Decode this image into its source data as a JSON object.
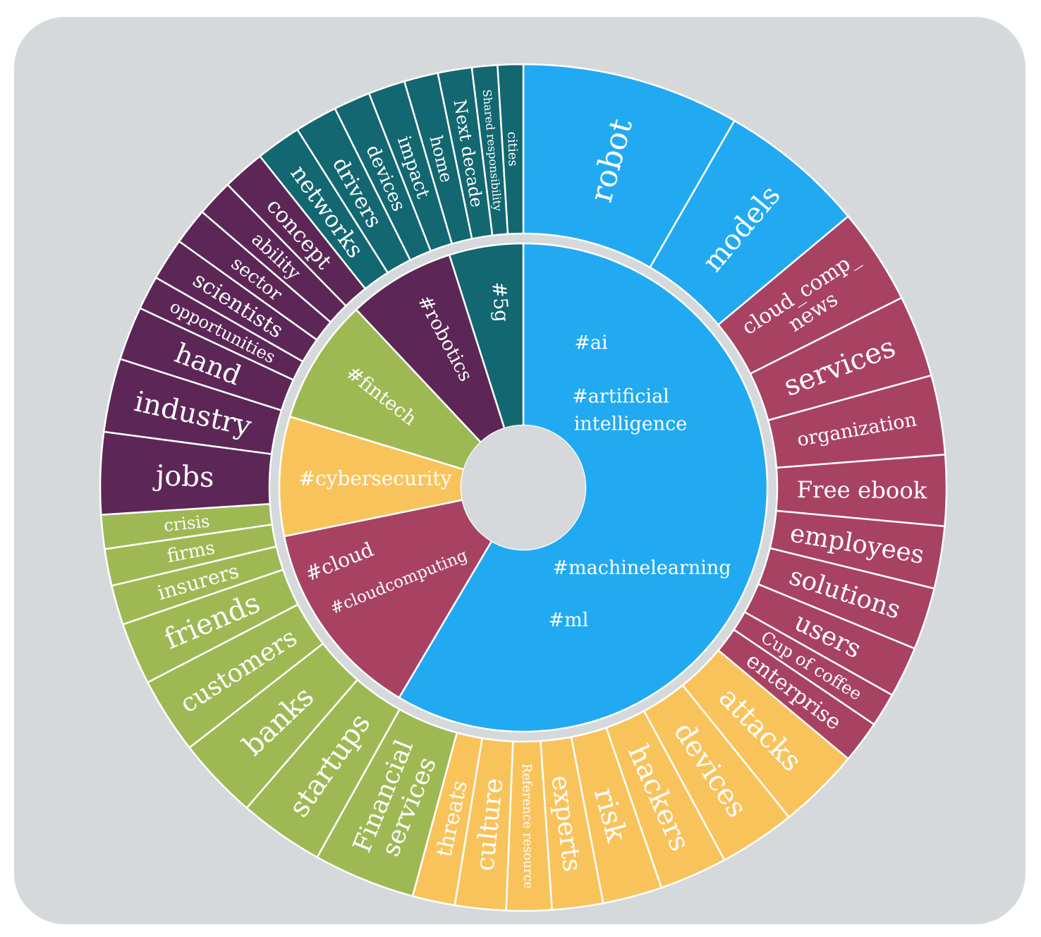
{
  "chart_data": {
    "type": "sunburst",
    "title": "",
    "colors": {
      "ai": "#21aaf2",
      "cloud": "#a84263",
      "cybersecurity": "#f9c35c",
      "fintech": "#9eb954",
      "robotics": "#5c2757",
      "5g": "#126771"
    },
    "inner": [
      {
        "key": "ai",
        "lines": [
          "#ai",
          "#artificial",
          "intelligence",
          "#machinelearning",
          "#ml"
        ],
        "value": 58.5
      },
      {
        "key": "cloud",
        "lines": [
          "#cloud",
          "#cloudcomputing"
        ],
        "value": 13.3
      },
      {
        "key": "cybersecurity",
        "lines": [
          "#cybersecurity"
        ],
        "value": 7.9
      },
      {
        "key": "fintech",
        "lines": [
          "#fintech"
        ],
        "value": 8.3
      },
      {
        "key": "robotics",
        "lines": [
          "#robotics"
        ],
        "value": 7.1
      },
      {
        "key": "5g",
        "lines": [
          "#5g"
        ],
        "value": 4.9
      }
    ],
    "outer": [
      {
        "label": "robot",
        "group": "ai",
        "value": 7.7
      },
      {
        "label": "models",
        "group": "ai",
        "value": 5.2
      },
      {
        "label": "cloud_comp_ news",
        "group": "cloud",
        "value": 3.4
      },
      {
        "label": "services",
        "group": "cloud",
        "value": 2.9
      },
      {
        "label": "organization",
        "group": "cloud",
        "value": 2.8
      },
      {
        "label": "Free ebook",
        "group": "cloud",
        "value": 2.5
      },
      {
        "label": "employees",
        "group": "cloud",
        "value": 2.2
      },
      {
        "label": "solutions",
        "group": "cloud",
        "value": 2.2
      },
      {
        "label": "users",
        "group": "cloud",
        "value": 1.8
      },
      {
        "label": "Cup of coffee",
        "group": "cloud",
        "value": 1.2
      },
      {
        "label": "enterprise",
        "group": "cloud",
        "value": 1.5
      },
      {
        "label": "attacks",
        "group": "cybersecurity",
        "value": 2.9
      },
      {
        "label": "devices",
        "group": "cybersecurity",
        "value": 2.7
      },
      {
        "label": "hackers",
        "group": "cybersecurity",
        "value": 2.4
      },
      {
        "label": "risk",
        "group": "cybersecurity",
        "value": 2.1
      },
      {
        "label": "experts",
        "group": "cybersecurity",
        "value": 1.8
      },
      {
        "label": "Reference resource",
        "group": "cybersecurity",
        "value": 1.6
      },
      {
        "label": "culture",
        "group": "cybersecurity",
        "value": 1.8
      },
      {
        "label": "threats",
        "group": "cybersecurity",
        "value": 1.5
      },
      {
        "label": "Financial services",
        "group": "fintech",
        "value": 3.6
      },
      {
        "label": "startups",
        "group": "fintech",
        "value": 3.0
      },
      {
        "label": "banks",
        "group": "fintech",
        "value": 2.9
      },
      {
        "label": "customers",
        "group": "fintech",
        "value": 2.7
      },
      {
        "label": "friends",
        "group": "fintech",
        "value": 2.2
      },
      {
        "label": "insurers",
        "group": "fintech",
        "value": 1.4
      },
      {
        "label": "firms",
        "group": "fintech",
        "value": 1.3
      },
      {
        "label": "crisis",
        "group": "fintech",
        "value": 1.2
      },
      {
        "label": "jobs",
        "group": "robotics",
        "value": 2.9
      },
      {
        "label": "industry",
        "group": "robotics",
        "value": 2.6
      },
      {
        "label": "hand",
        "group": "robotics",
        "value": 1.9
      },
      {
        "label": "opportunities",
        "group": "robotics",
        "value": 1.2
      },
      {
        "label": "scientists",
        "group": "robotics",
        "value": 1.5
      },
      {
        "label": "sector",
        "group": "robotics",
        "value": 1.3
      },
      {
        "label": "ability",
        "group": "robotics",
        "value": 1.3
      },
      {
        "label": "concept",
        "group": "robotics",
        "value": 1.5
      },
      {
        "label": "networks",
        "group": "5g",
        "value": 1.6
      },
      {
        "label": "drivers",
        "group": "5g",
        "value": 1.5
      },
      {
        "label": "devices",
        "group": "5g",
        "value": 1.3
      },
      {
        "label": "impact",
        "group": "5g",
        "value": 1.3
      },
      {
        "label": "home",
        "group": "5g",
        "value": 1.2
      },
      {
        "label": "Next decade",
        "group": "5g",
        "value": 1.2
      },
      {
        "label": "Shared responsibility",
        "group": "5g",
        "value": 0.9
      },
      {
        "label": "cities",
        "group": "5g",
        "value": 0.9
      }
    ]
  }
}
